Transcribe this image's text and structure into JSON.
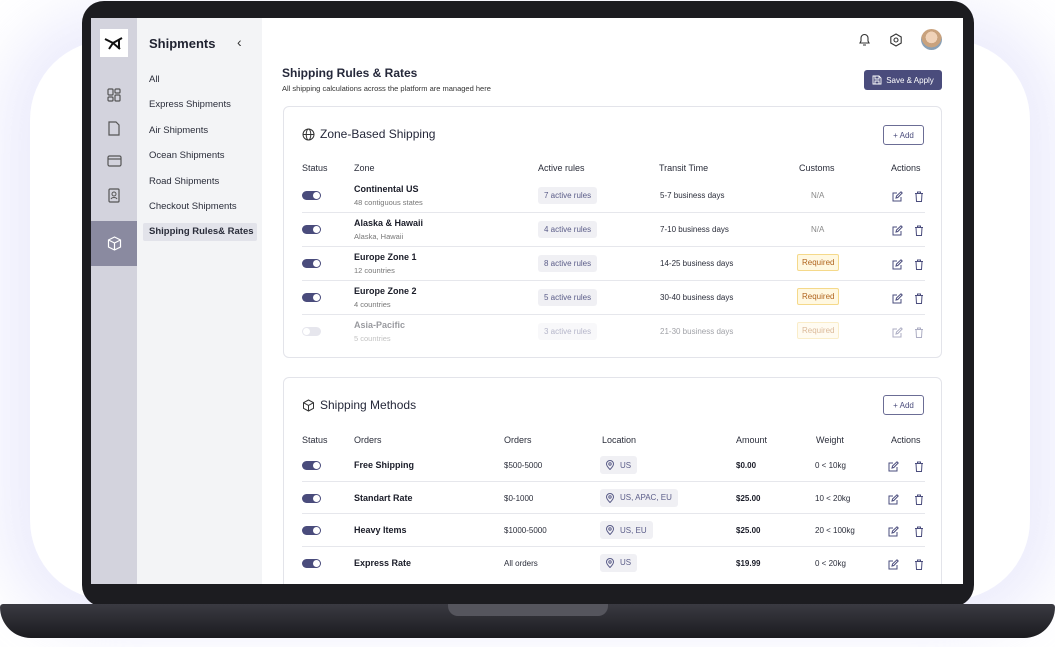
{
  "sidebar": {
    "title": "Shipments",
    "items": [
      "All",
      "Express Shipments",
      "Air Shipments",
      "Ocean Shipments",
      "Road Shipments",
      "Checkout Shipments",
      "Shipping Rules& Rates"
    ],
    "active": "Shipping Rules& Rates"
  },
  "rail_icons": [
    "dashboard-icon",
    "document-icon",
    "card-icon",
    "contact-book-icon",
    "box-icon"
  ],
  "header": {
    "title": "Shipping Rules & Rates",
    "subtitle": "All shipping calculations across the platform are managed here",
    "save_label": "Save & Apply"
  },
  "colors": {
    "accent": "#4a4c7c",
    "required_text": "#b0641e",
    "required_bg": "#fff8e1"
  },
  "zones": {
    "title": "Zone-Based Shipping",
    "add_label": "+ Add",
    "columns": [
      "Status",
      "Zone",
      "Active rules",
      "Transit Time",
      "Customs",
      "Actions"
    ],
    "rows": [
      {
        "enabled": true,
        "name": "Continental US",
        "desc": "48 contiguous states",
        "rules": "7 active rules",
        "transit": "5-7 business days",
        "customs": "N/A"
      },
      {
        "enabled": true,
        "name": "Alaska & Hawaii",
        "desc": "Alaska, Hawaii",
        "rules": "4 active rules",
        "transit": "7-10 business days",
        "customs": "N/A"
      },
      {
        "enabled": true,
        "name": "Europe Zone 1",
        "desc": "12 countries",
        "rules": "8 active rules",
        "transit": "14-25 business days",
        "customs": "Required"
      },
      {
        "enabled": true,
        "name": "Europe Zone 2",
        "desc": "4 countries",
        "rules": "5 active rules",
        "transit": "30-40 business days",
        "customs": "Required"
      },
      {
        "enabled": false,
        "name": "Asia-Pacific",
        "desc": "5 countries",
        "rules": "3 active rules",
        "transit": "21-30 business days",
        "customs": "Required"
      }
    ]
  },
  "methods": {
    "title": "Shipping Methods",
    "add_label": "+ Add",
    "columns": [
      "Status",
      "Orders",
      "Orders",
      "Location",
      "Amount",
      "Weight",
      "Actions"
    ],
    "rows": [
      {
        "enabled": true,
        "name": "Free Shipping",
        "orders": "$500-5000",
        "location": "US",
        "amount": "$0.00",
        "weight": "0 < 10kg"
      },
      {
        "enabled": true,
        "name": "Standart Rate",
        "orders": "$0-1000",
        "location": "US, APAC, EU",
        "amount": "$25.00",
        "weight": "10 < 20kg"
      },
      {
        "enabled": true,
        "name": "Heavy Items",
        "orders": "$1000-5000",
        "location": "US, EU",
        "amount": "$25.00",
        "weight": "20 < 100kg"
      },
      {
        "enabled": true,
        "name": "Express Rate",
        "orders": "All orders",
        "location": "US",
        "amount": "$19.99",
        "weight": "0 < 20kg"
      }
    ]
  }
}
